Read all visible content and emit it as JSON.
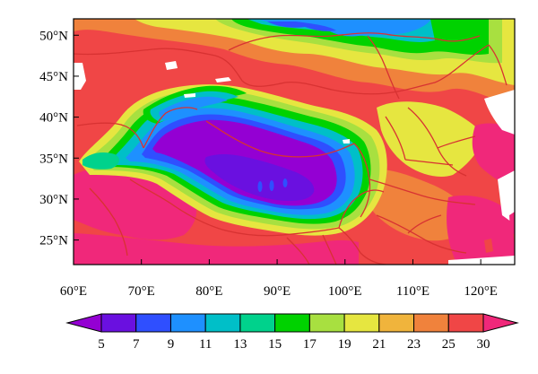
{
  "map": {
    "x_axis": {
      "min": 60,
      "max": 125,
      "ticks": [
        {
          "value": 60,
          "label": "60°E"
        },
        {
          "value": 70,
          "label": "70°E"
        },
        {
          "value": 80,
          "label": "80°E"
        },
        {
          "value": 90,
          "label": "90°E"
        },
        {
          "value": 100,
          "label": "100°E"
        },
        {
          "value": 110,
          "label": "110°E"
        },
        {
          "value": 120,
          "label": "120°E"
        }
      ]
    },
    "y_axis": {
      "min": 22,
      "max": 52,
      "ticks": [
        {
          "value": 25,
          "label": "25°N"
        },
        {
          "value": 30,
          "label": "30°N"
        },
        {
          "value": 35,
          "label": "35°N"
        },
        {
          "value": 40,
          "label": "40°N"
        },
        {
          "value": 45,
          "label": "45°N"
        },
        {
          "value": 50,
          "label": "50°N"
        }
      ]
    }
  },
  "colorbar": {
    "labels": [
      "5",
      "7",
      "9",
      "11",
      "13",
      "15",
      "17",
      "19",
      "21",
      "23",
      "25",
      "30"
    ],
    "colors": [
      "#9400d3",
      "#6a10e0",
      "#2f4fff",
      "#1e90ff",
      "#00bfc8",
      "#00d28c",
      "#00d200",
      "#a8e040",
      "#e6e640",
      "#f0b43c",
      "#f0823c",
      "#f04646",
      "#f0287a"
    ]
  }
}
